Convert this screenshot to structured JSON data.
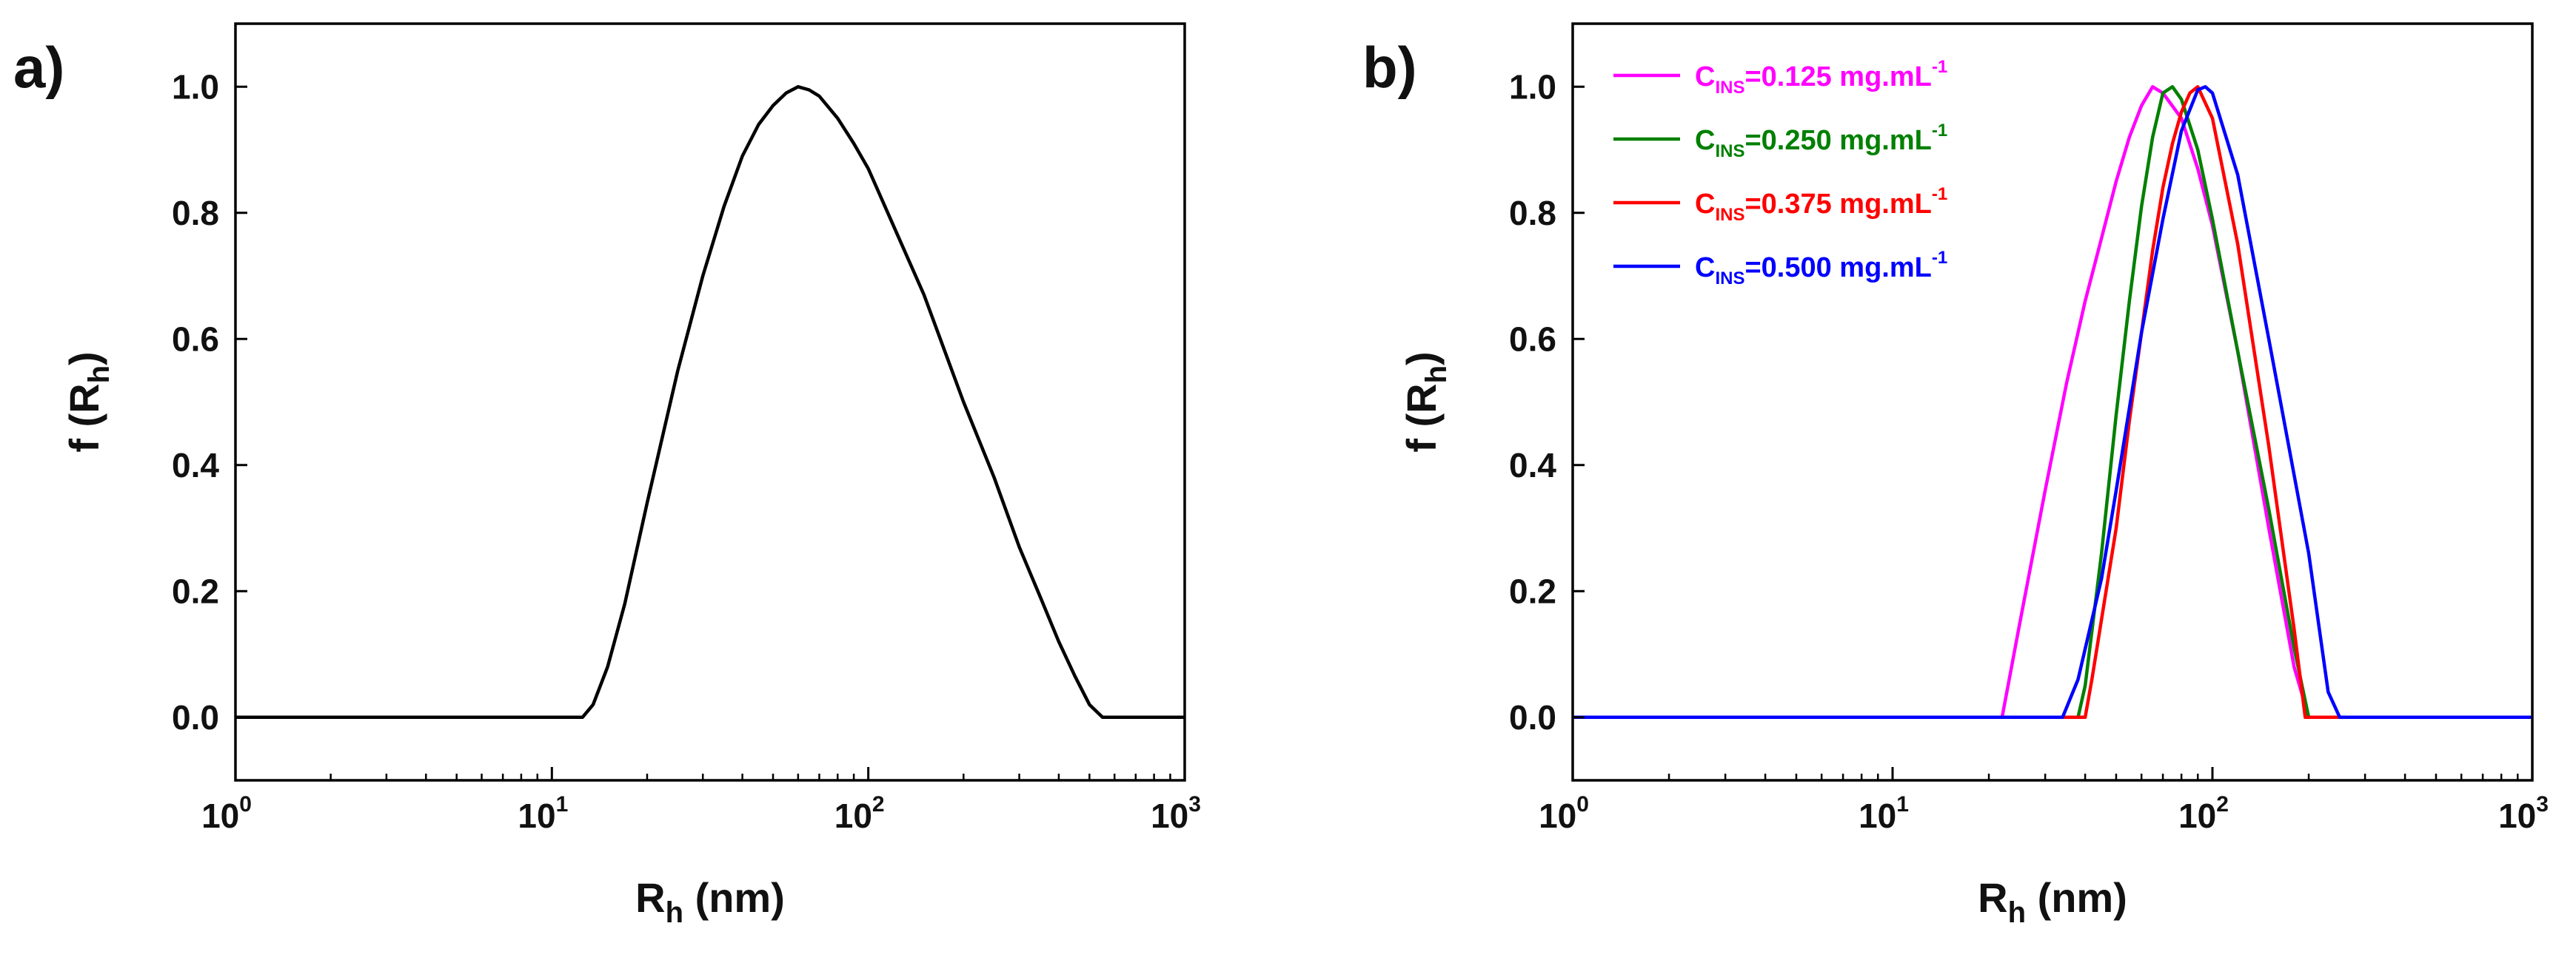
{
  "chart_data": [
    {
      "panel_label": "a)",
      "type": "line",
      "xscale": "log",
      "xlim": [
        1,
        1000
      ],
      "ylim": [
        -0.1,
        1.1
      ],
      "x_ticks": [
        {
          "value": 1,
          "base": "10",
          "exp": "0"
        },
        {
          "value": 10,
          "base": "10",
          "exp": "1"
        },
        {
          "value": 100,
          "base": "10",
          "exp": "2"
        },
        {
          "value": 1000,
          "base": "10",
          "exp": "3"
        }
      ],
      "y_ticks": [
        "0.0",
        "0.2",
        "0.4",
        "0.6",
        "0.8",
        "1.0"
      ],
      "xlabel": {
        "main": "R",
        "sub": "h",
        "suffix": " (nm)"
      },
      "ylabel": {
        "prefix": "f (R",
        "sub": "h",
        "suffix": ")"
      },
      "series": [
        {
          "name": "f(Rh)",
          "color": "#000000",
          "x": [
            1,
            12.5,
            13.5,
            15,
            17,
            20,
            25,
            30,
            35,
            40,
            45,
            50,
            55,
            60,
            65,
            70,
            80,
            90,
            100,
            120,
            150,
            200,
            250,
            300,
            350,
            400,
            450,
            500,
            550,
            600,
            700,
            1000
          ],
          "y": [
            0,
            0,
            0.02,
            0.08,
            0.18,
            0.34,
            0.55,
            0.7,
            0.81,
            0.89,
            0.94,
            0.97,
            0.99,
            1.0,
            0.995,
            0.985,
            0.95,
            0.91,
            0.87,
            0.78,
            0.67,
            0.5,
            0.38,
            0.27,
            0.19,
            0.12,
            0.065,
            0.02,
            0.0,
            0.0,
            0,
            0
          ]
        }
      ]
    },
    {
      "panel_label": "b)",
      "type": "line",
      "xscale": "log",
      "xlim": [
        1,
        1000
      ],
      "ylim": [
        -0.1,
        1.1
      ],
      "x_ticks": [
        {
          "value": 1,
          "base": "10",
          "exp": "0"
        },
        {
          "value": 10,
          "base": "10",
          "exp": "1"
        },
        {
          "value": 100,
          "base": "10",
          "exp": "2"
        },
        {
          "value": 1000,
          "base": "10",
          "exp": "3"
        }
      ],
      "y_ticks": [
        "0.0",
        "0.2",
        "0.4",
        "0.6",
        "0.8",
        "1.0"
      ],
      "xlabel": {
        "main": "R",
        "sub": "h",
        "suffix": " (nm)"
      },
      "ylabel": {
        "prefix": "f (R",
        "sub": "h",
        "suffix": ")"
      },
      "legend_position": "top-left",
      "series": [
        {
          "label": {
            "main": "C",
            "sub": "INS",
            "rest": "=0.125 mg.mL",
            "sup": "-1"
          },
          "color": "#ff00ff",
          "x": [
            1,
            22,
            25,
            30,
            35,
            40,
            45,
            50,
            55,
            60,
            65,
            70,
            80,
            90,
            100,
            120,
            150,
            180,
            200,
            1000
          ],
          "y": [
            0,
            0,
            0.15,
            0.36,
            0.53,
            0.66,
            0.76,
            0.85,
            0.92,
            0.97,
            1.0,
            0.99,
            0.95,
            0.87,
            0.78,
            0.58,
            0.3,
            0.08,
            0,
            0
          ]
        },
        {
          "label": {
            "main": "C",
            "sub": "INS",
            "rest": "=0.250 mg.mL",
            "sup": "-1"
          },
          "color": "#008000",
          "x": [
            1,
            38,
            40,
            45,
            50,
            55,
            60,
            65,
            70,
            75,
            80,
            90,
            100,
            120,
            150,
            180,
            200,
            1000
          ],
          "y": [
            0,
            0,
            0.05,
            0.26,
            0.48,
            0.66,
            0.81,
            0.92,
            0.99,
            1.0,
            0.98,
            0.9,
            0.79,
            0.58,
            0.33,
            0.11,
            0,
            0
          ]
        },
        {
          "label": {
            "main": "C",
            "sub": "INS",
            "rest": "=0.375 mg.mL",
            "sup": "-1"
          },
          "color": "#ff0000",
          "x": [
            1,
            40,
            42,
            50,
            55,
            60,
            65,
            70,
            75,
            80,
            85,
            90,
            100,
            120,
            150,
            180,
            195,
            220,
            1000
          ],
          "y": [
            0,
            0,
            0.06,
            0.3,
            0.47,
            0.61,
            0.74,
            0.84,
            0.91,
            0.96,
            0.99,
            1.0,
            0.95,
            0.75,
            0.43,
            0.14,
            0,
            0,
            0
          ]
        },
        {
          "label": {
            "main": "C",
            "sub": "INS",
            "rest": "=0.500 mg.mL",
            "sup": "-1"
          },
          "color": "#0000ff",
          "x": [
            1,
            34,
            38,
            45,
            50,
            55,
            60,
            70,
            80,
            90,
            95,
            100,
            120,
            150,
            200,
            230,
            250,
            1000
          ],
          "y": [
            0,
            0,
            0.06,
            0.22,
            0.36,
            0.49,
            0.61,
            0.79,
            0.93,
            0.995,
            1.0,
            0.99,
            0.86,
            0.6,
            0.26,
            0.04,
            0,
            0
          ]
        }
      ]
    }
  ]
}
